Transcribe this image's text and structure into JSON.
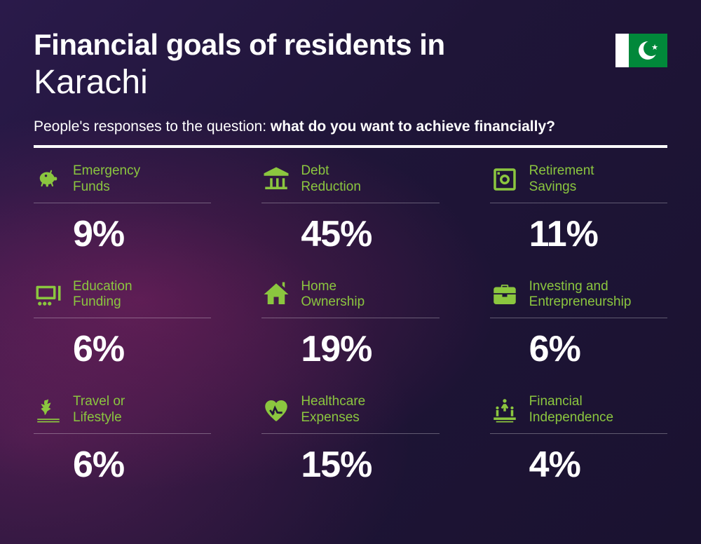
{
  "title_line1": "Financial goals of residents in",
  "title_line2": "Karachi",
  "subtitle_prefix": "People's responses to the question: ",
  "subtitle_bold": "what do you want to achieve financially?",
  "accent_color": "#8bc63f",
  "text_color": "#ffffff",
  "flag": {
    "white": "#ffffff",
    "green": "#01883a"
  },
  "cells": [
    {
      "icon": "piggy-bank-icon",
      "label_l1": "Emergency",
      "label_l2": "Funds",
      "value": "9%"
    },
    {
      "icon": "bank-icon",
      "label_l1": "Debt",
      "label_l2": "Reduction",
      "value": "45%"
    },
    {
      "icon": "safe-icon",
      "label_l1": "Retirement",
      "label_l2": "Savings",
      "value": "11%"
    },
    {
      "icon": "education-icon",
      "label_l1": "Education",
      "label_l2": "Funding",
      "value": "6%"
    },
    {
      "icon": "house-icon",
      "label_l1": "Home",
      "label_l2": "Ownership",
      "value": "19%"
    },
    {
      "icon": "briefcase-icon",
      "label_l1": "Investing and",
      "label_l2": "Entrepreneurship",
      "value": "6%"
    },
    {
      "icon": "travel-icon",
      "label_l1": "Travel or",
      "label_l2": "Lifestyle",
      "value": "6%"
    },
    {
      "icon": "heart-icon",
      "label_l1": "Healthcare",
      "label_l2": "Expenses",
      "value": "15%"
    },
    {
      "icon": "independence-icon",
      "label_l1": "Financial",
      "label_l2": "Independence",
      "value": "4%"
    }
  ]
}
